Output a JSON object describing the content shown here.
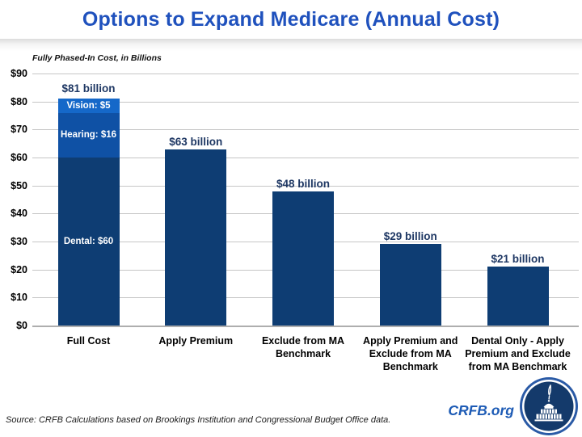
{
  "header": {
    "title": "Options to Expand Medicare (Annual Cost)"
  },
  "chart_data": {
    "type": "bar",
    "title": "Options to Expand Medicare (Annual Cost)",
    "subtitle": "Fully Phased-In Cost, in Billions",
    "categories": [
      "Full Cost",
      "Apply Premium",
      "Exclude from MA Benchmark",
      "Apply Premium and Exclude from MA Benchmark",
      "Dental Only - Apply Premium and Exclude from MA Benchmark"
    ],
    "values": [
      81,
      63,
      48,
      29,
      21
    ],
    "bar_value_labels": [
      "$81 billion",
      "$63 billion",
      "$48 billion",
      "$29 billion",
      "$21 billion"
    ],
    "stacked_first_bar": [
      {
        "name": "Dental",
        "label": "Dental: $60",
        "value": 60,
        "color": "#0E3D73"
      },
      {
        "name": "Hearing",
        "label": "Hearing: $16",
        "value": 16,
        "color": "#0F51A5"
      },
      {
        "name": "Vision",
        "label": "Vision: $5",
        "value": 5,
        "color": "#1568C9"
      }
    ],
    "ylim": [
      0,
      90
    ],
    "ytick_interval": 10,
    "ytick_labels": [
      "$0",
      "$10",
      "$20",
      "$30",
      "$40",
      "$50",
      "$60",
      "$70",
      "$80",
      "$90"
    ],
    "grid": true,
    "legend": "none",
    "bar_color": "#0E3D73"
  },
  "footer": {
    "source": "Source: CRFB Calculations based on Brookings Institution and Congressional Budget Office data.",
    "brand": "CRFB.org"
  },
  "icons": {
    "logo": "crfb-capitol-quill-logo"
  },
  "colors": {
    "title": "#1F51BD",
    "value_label": "#1F3864",
    "brand": "#1D5BB5",
    "grid": "#C6C6C6",
    "bar": "#0E3D73"
  }
}
